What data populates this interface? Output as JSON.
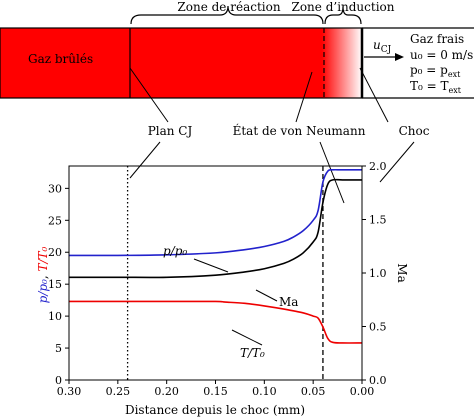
{
  "schematic": {
    "zone_reaction": "Zone de réaction",
    "zone_induction": "Zone d’induction",
    "burned_gas": "Gaz brûlés",
    "ucj_main": "u",
    "ucj_sub": "CJ",
    "fresh_gas": {
      "title": "Gaz frais",
      "line1": "u₀ = 0 m/s",
      "line2": "p₀ = p",
      "line2_sub": "ext",
      "line3": "T₀ = T",
      "line3_sub": "ext"
    },
    "callouts": {
      "plan_cj": "Plan CJ",
      "von_neumann": "État de von Neumann",
      "choc": "Choc"
    },
    "colors": {
      "burned": "#ff0000",
      "fresh": "#ffffff"
    }
  },
  "chart_data": {
    "type": "line",
    "xlabel": "Distance depuis le choc (mm)",
    "ylabel_left_parts": [
      "p/p₀",
      ", ",
      "T/T₀"
    ],
    "ylabel_right": "Ma",
    "xlim": [
      0.3,
      0.0
    ],
    "ylim_left": [
      0,
      33.5
    ],
    "ylim_right": [
      0,
      2.0
    ],
    "x_ticks": [
      "0.30",
      "0.25",
      "0.20",
      "0.15",
      "0.10",
      "0.05",
      "0.00"
    ],
    "y_ticks_left": [
      "0",
      "5",
      "10",
      "15",
      "20",
      "25",
      "30"
    ],
    "y_ticks_right": [
      "0.0",
      "0.5",
      "1.0",
      "1.5",
      "2.0"
    ],
    "vlines": [
      {
        "x": 0.24,
        "style": "dotted"
      },
      {
        "x": 0.04,
        "style": "dashed"
      }
    ],
    "series": [
      {
        "name": "p/p₀",
        "axis": "left",
        "color": "#2222cc",
        "x": [
          0.3,
          0.25,
          0.2,
          0.15,
          0.12,
          0.1,
          0.08,
          0.07,
          0.06,
          0.05,
          0.045,
          0.04,
          0.035,
          0.03,
          0.02,
          0.0
        ],
        "y": [
          19.5,
          19.5,
          19.6,
          19.9,
          20.4,
          20.9,
          21.7,
          22.4,
          23.4,
          25.0,
          26.5,
          31.0,
          32.7,
          32.9,
          32.9,
          32.9
        ]
      },
      {
        "name": "Ma",
        "axis": "right",
        "color": "#000000",
        "x": [
          0.3,
          0.25,
          0.2,
          0.15,
          0.12,
          0.1,
          0.08,
          0.07,
          0.06,
          0.05,
          0.045,
          0.04,
          0.035,
          0.03,
          0.02,
          0.0
        ],
        "y": [
          0.96,
          0.96,
          0.96,
          0.98,
          1.01,
          1.04,
          1.09,
          1.13,
          1.19,
          1.29,
          1.38,
          1.66,
          1.83,
          1.87,
          1.87,
          1.87
        ]
      },
      {
        "name": "T/T₀",
        "axis": "left",
        "color": "#ee0000",
        "x": [
          0.3,
          0.25,
          0.2,
          0.15,
          0.14,
          0.12,
          0.1,
          0.08,
          0.06,
          0.05,
          0.045,
          0.04,
          0.035,
          0.03,
          0.02,
          0.0
        ],
        "y": [
          12.3,
          12.3,
          12.3,
          12.3,
          12.2,
          12.0,
          11.6,
          11.1,
          10.5,
          10.0,
          9.7,
          8.3,
          6.5,
          5.9,
          5.8,
          5.8
        ]
      }
    ],
    "annotations": [
      {
        "text": "p/p₀",
        "color": "#2222cc",
        "series": "p/p₀"
      },
      {
        "text": "Ma",
        "color": "#000000",
        "series": "Ma"
      },
      {
        "text": "T/T₀",
        "color": "#ee0000",
        "series": "T/T₀"
      }
    ]
  }
}
